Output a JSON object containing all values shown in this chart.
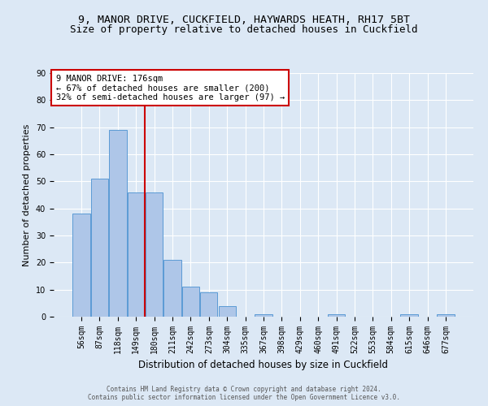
{
  "title_line1": "9, MANOR DRIVE, CUCKFIELD, HAYWARDS HEATH, RH17 5BT",
  "title_line2": "Size of property relative to detached houses in Cuckfield",
  "xlabel": "Distribution of detached houses by size in Cuckfield",
  "ylabel": "Number of detached properties",
  "categories": [
    "56sqm",
    "87sqm",
    "118sqm",
    "149sqm",
    "180sqm",
    "211sqm",
    "242sqm",
    "273sqm",
    "304sqm",
    "335sqm",
    "367sqm",
    "398sqm",
    "429sqm",
    "460sqm",
    "491sqm",
    "522sqm",
    "553sqm",
    "584sqm",
    "615sqm",
    "646sqm",
    "677sqm"
  ],
  "values": [
    38,
    51,
    69,
    46,
    46,
    21,
    11,
    9,
    4,
    0,
    1,
    0,
    0,
    0,
    1,
    0,
    0,
    0,
    1,
    0,
    1
  ],
  "bar_color": "#aec6e8",
  "bar_edgecolor": "#5b9bd5",
  "vline_position": 3.5,
  "vline_color": "#cc0000",
  "annotation_text": "9 MANOR DRIVE: 176sqm\n← 67% of detached houses are smaller (200)\n32% of semi-detached houses are larger (97) →",
  "annotation_box_color": "#ffffff",
  "annotation_box_edgecolor": "#cc0000",
  "ylim": [
    0,
    90
  ],
  "yticks": [
    0,
    10,
    20,
    30,
    40,
    50,
    60,
    70,
    80,
    90
  ],
  "footer_text": "Contains HM Land Registry data © Crown copyright and database right 2024.\nContains public sector information licensed under the Open Government Licence v3.0.",
  "background_color": "#dce8f5",
  "grid_color": "#ffffff",
  "title_fontsize": 9.5,
  "subtitle_fontsize": 9,
  "axis_label_fontsize": 8.5,
  "ylabel_fontsize": 8,
  "tick_fontsize": 7,
  "annotation_fontsize": 7.5,
  "footer_fontsize": 5.5
}
